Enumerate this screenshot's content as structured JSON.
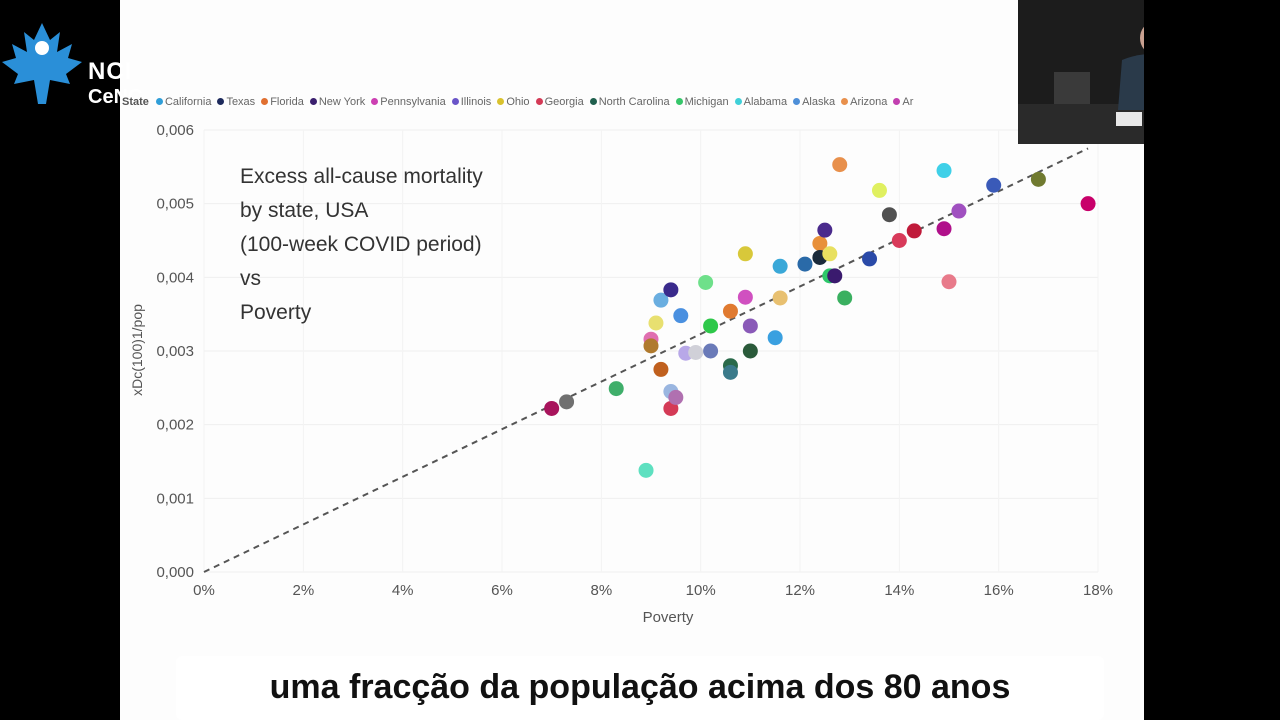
{
  "branding": {
    "logo_line1": "NCI",
    "logo_line2": "CeNC"
  },
  "annotation": "Excess all-cause mortality\nby state, USA\n(100-week COVID period)\nvs\nPoverty",
  "subtitle": "uma fracção da população acima dos 80 anos",
  "legend": {
    "title": "State",
    "items": [
      {
        "label": "California",
        "color": "#2f9ed8"
      },
      {
        "label": "Texas",
        "color": "#1d2a5c"
      },
      {
        "label": "Florida",
        "color": "#e06f30"
      },
      {
        "label": "New York",
        "color": "#3a1f6e"
      },
      {
        "label": "Pennsylvania",
        "color": "#cc3fb2"
      },
      {
        "label": "Illinois",
        "color": "#6a55c8"
      },
      {
        "label": "Ohio",
        "color": "#d9c22e"
      },
      {
        "label": "Georgia",
        "color": "#d43a56"
      },
      {
        "label": "North Carolina",
        "color": "#1f5f4d"
      },
      {
        "label": "Michigan",
        "color": "#36c66a"
      },
      {
        "label": "Alabama",
        "color": "#3fd0d8"
      },
      {
        "label": "Alaska",
        "color": "#4e8fd8"
      },
      {
        "label": "Arizona",
        "color": "#e8904c"
      },
      {
        "label": "Ar",
        "color": "#c23fb0"
      }
    ]
  },
  "chart_data": {
    "type": "scatter",
    "xlabel": "Poverty",
    "ylabel": "xDc(100)1/pop",
    "xlim": [
      0,
      0.18
    ],
    "ylim": [
      0,
      0.006
    ],
    "x_ticks": [
      "0%",
      "2%",
      "4%",
      "6%",
      "8%",
      "10%",
      "12%",
      "14%",
      "16%",
      "18%"
    ],
    "y_ticks": [
      "0,000",
      "0,001",
      "0,002",
      "0,003",
      "0,004",
      "0,005",
      "0,006"
    ],
    "trendline": {
      "style": "dashed",
      "from": [
        0.0,
        0.0
      ],
      "to": [
        0.178,
        0.00575
      ]
    },
    "points": [
      {
        "x": 0.07,
        "y": 0.00222,
        "color": "#a8145c"
      },
      {
        "x": 0.073,
        "y": 0.00231,
        "color": "#707070"
      },
      {
        "x": 0.083,
        "y": 0.00249,
        "color": "#3fae6a"
      },
      {
        "x": 0.089,
        "y": 0.00138,
        "color": "#5ee0c0"
      },
      {
        "x": 0.09,
        "y": 0.00316,
        "color": "#e06fb0"
      },
      {
        "x": 0.09,
        "y": 0.00307,
        "color": "#b07a2e"
      },
      {
        "x": 0.091,
        "y": 0.00338,
        "color": "#e8e070"
      },
      {
        "x": 0.092,
        "y": 0.00369,
        "color": "#6aaee0"
      },
      {
        "x": 0.092,
        "y": 0.00275,
        "color": "#c0601e"
      },
      {
        "x": 0.094,
        "y": 0.00383,
        "color": "#3a2a8c"
      },
      {
        "x": 0.094,
        "y": 0.00245,
        "color": "#9ab6e0"
      },
      {
        "x": 0.094,
        "y": 0.00222,
        "color": "#d43a56"
      },
      {
        "x": 0.095,
        "y": 0.00237,
        "color": "#b070b0"
      },
      {
        "x": 0.096,
        "y": 0.00348,
        "color": "#4a90e0"
      },
      {
        "x": 0.097,
        "y": 0.00297,
        "color": "#b8a8e8"
      },
      {
        "x": 0.099,
        "y": 0.00298,
        "color": "#d0d0d8"
      },
      {
        "x": 0.101,
        "y": 0.00393,
        "color": "#6ee08a"
      },
      {
        "x": 0.102,
        "y": 0.00334,
        "color": "#2ec84a"
      },
      {
        "x": 0.102,
        "y": 0.003,
        "color": "#6a7ab8"
      },
      {
        "x": 0.106,
        "y": 0.00354,
        "color": "#e07a30"
      },
      {
        "x": 0.106,
        "y": 0.0028,
        "color": "#2a6a4a"
      },
      {
        "x": 0.106,
        "y": 0.00271,
        "color": "#3a7a8a"
      },
      {
        "x": 0.109,
        "y": 0.00432,
        "color": "#d8c83a"
      },
      {
        "x": 0.109,
        "y": 0.00373,
        "color": "#d050c0"
      },
      {
        "x": 0.11,
        "y": 0.00334,
        "color": "#8a5ab8"
      },
      {
        "x": 0.11,
        "y": 0.003,
        "color": "#2a5a3a"
      },
      {
        "x": 0.115,
        "y": 0.00318,
        "color": "#3aa0e0"
      },
      {
        "x": 0.116,
        "y": 0.00415,
        "color": "#3aa8d8"
      },
      {
        "x": 0.116,
        "y": 0.00372,
        "color": "#e8c070"
      },
      {
        "x": 0.121,
        "y": 0.00418,
        "color": "#2a6aa8"
      },
      {
        "x": 0.124,
        "y": 0.00446,
        "color": "#e8903a"
      },
      {
        "x": 0.124,
        "y": 0.00427,
        "color": "#1a2a3a"
      },
      {
        "x": 0.125,
        "y": 0.00464,
        "color": "#4a2a8c"
      },
      {
        "x": 0.126,
        "y": 0.00432,
        "color": "#e8e060"
      },
      {
        "x": 0.126,
        "y": 0.00402,
        "color": "#2ec86a"
      },
      {
        "x": 0.127,
        "y": 0.00402,
        "color": "#3a1a6e"
      },
      {
        "x": 0.128,
        "y": 0.00553,
        "color": "#e8904c"
      },
      {
        "x": 0.129,
        "y": 0.00372,
        "color": "#3ab060"
      },
      {
        "x": 0.134,
        "y": 0.00425,
        "color": "#2a4aa8"
      },
      {
        "x": 0.136,
        "y": 0.00518,
        "color": "#e0f060"
      },
      {
        "x": 0.138,
        "y": 0.00485,
        "color": "#505050"
      },
      {
        "x": 0.14,
        "y": 0.0045,
        "color": "#d83a5a"
      },
      {
        "x": 0.143,
        "y": 0.00463,
        "color": "#c01a3a"
      },
      {
        "x": 0.149,
        "y": 0.00545,
        "color": "#3fd0e8"
      },
      {
        "x": 0.149,
        "y": 0.00466,
        "color": "#b0108a"
      },
      {
        "x": 0.15,
        "y": 0.00394,
        "color": "#e87a8a"
      },
      {
        "x": 0.152,
        "y": 0.0049,
        "color": "#a050c0"
      },
      {
        "x": 0.159,
        "y": 0.00525,
        "color": "#3a5ab8"
      },
      {
        "x": 0.168,
        "y": 0.00533,
        "color": "#707a30"
      },
      {
        "x": 0.178,
        "y": 0.005,
        "color": "#c8006a"
      }
    ]
  }
}
